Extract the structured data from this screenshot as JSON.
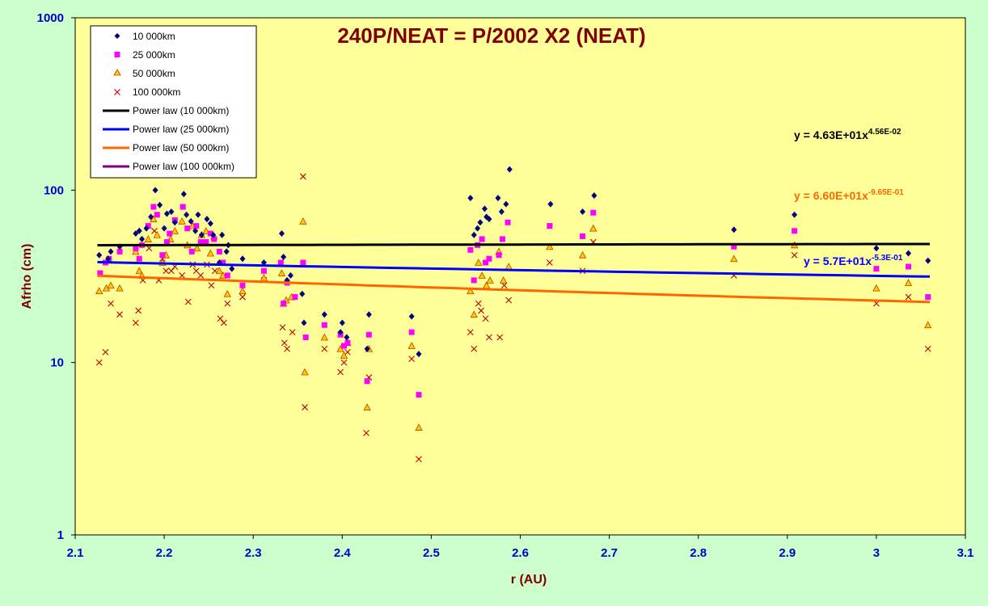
{
  "chart_data": {
    "type": "scatter",
    "title": "240P/NEAT = P/2002 X2 (NEAT)",
    "xlabel": "r (AU)",
    "ylabel": "Afrho (cm)",
    "xlim": [
      2.1,
      3.1
    ],
    "ylim": [
      1,
      1000
    ],
    "yscale": "log",
    "x_ticks": [
      "2.1",
      "2.2",
      "2.3",
      "2.4",
      "2.5",
      "2.6",
      "2.7",
      "2.8",
      "2.9",
      "3",
      "3.1"
    ],
    "y_ticks": [
      "1",
      "10",
      "100",
      "1000"
    ],
    "grid": false,
    "legend_position": "top-left",
    "colors": {
      "plot_bg": "#FFFF99",
      "outer_bg": "#CCFFCC",
      "title": "#800000",
      "axis_label": "#800000",
      "tick_label": "#0000CC",
      "s10k": "#000080",
      "s25k": "#FF00FF",
      "s50k_fill": "#FFCC00",
      "s50k_edge": "#C04000",
      "s100k": "#C00000",
      "fit10k": "#000000",
      "fit25k": "#0000FF",
      "fit50k": "#FF6600",
      "fit100k": "#800080"
    },
    "series": [
      {
        "name": "10 000km",
        "marker": "diamond",
        "x": [
          2.127,
          2.137,
          2.14,
          2.15,
          2.168,
          2.172,
          2.175,
          2.18,
          2.185,
          2.19,
          2.195,
          2.2,
          2.203,
          2.208,
          2.212,
          2.222,
          2.225,
          2.23,
          2.235,
          2.238,
          2.242,
          2.248,
          2.252,
          2.255,
          2.262,
          2.265,
          2.27,
          2.272,
          2.276,
          2.288,
          2.312,
          2.332,
          2.334,
          2.338,
          2.342,
          2.355,
          2.357,
          2.38,
          2.398,
          2.4,
          2.405,
          2.428,
          2.43,
          2.478,
          2.486,
          2.544,
          2.548,
          2.552,
          2.555,
          2.56,
          2.562,
          2.565,
          2.575,
          2.579,
          2.584,
          2.588,
          2.634,
          2.67,
          2.683,
          2.84,
          2.908,
          3.0,
          3.036,
          3.058
        ],
        "y": [
          42,
          40,
          44,
          47,
          56,
          58,
          52,
          60,
          70,
          100,
          82,
          60,
          73,
          75,
          65,
          95,
          72,
          66,
          58,
          72,
          55,
          68,
          64,
          55,
          38,
          55,
          44,
          48,
          35,
          40,
          38,
          56,
          41,
          30,
          32,
          25,
          17,
          19,
          15,
          17,
          14,
          12,
          19,
          18.5,
          11.2,
          90,
          55,
          60,
          65,
          78,
          70,
          68,
          90,
          75,
          83,
          132,
          83,
          75,
          93,
          59,
          72,
          46,
          43,
          39
        ]
      },
      {
        "name": "25 000km",
        "marker": "square",
        "x": [
          2.128,
          2.134,
          2.138,
          2.15,
          2.168,
          2.172,
          2.175,
          2.182,
          2.188,
          2.192,
          2.198,
          2.203,
          2.206,
          2.212,
          2.221,
          2.226,
          2.231,
          2.236,
          2.241,
          2.247,
          2.252,
          2.256,
          2.262,
          2.266,
          2.271,
          2.288,
          2.312,
          2.331,
          2.334,
          2.338,
          2.347,
          2.356,
          2.359,
          2.38,
          2.398,
          2.402,
          2.406,
          2.428,
          2.43,
          2.478,
          2.486,
          2.544,
          2.548,
          2.552,
          2.557,
          2.561,
          2.565,
          2.576,
          2.58,
          2.586,
          2.633,
          2.67,
          2.682,
          2.84,
          2.908,
          3.0,
          3.036,
          3.058
        ],
        "y": [
          33,
          38,
          40,
          44,
          46,
          40,
          48,
          62,
          80,
          72,
          42,
          50,
          56,
          67,
          80,
          60,
          44,
          62,
          50,
          50,
          56,
          52,
          44,
          38,
          32,
          28,
          34,
          38,
          22,
          29,
          24,
          38,
          14,
          16.5,
          14.5,
          12.5,
          13,
          7.8,
          14.5,
          15,
          6.5,
          45,
          30,
          48,
          52,
          38,
          40,
          42,
          52,
          65,
          62,
          54,
          74,
          47,
          58,
          35,
          36,
          24
        ]
      },
      {
        "name": "50 000km",
        "marker": "triangle",
        "x": [
          2.127,
          2.135,
          2.14,
          2.15,
          2.168,
          2.172,
          2.175,
          2.182,
          2.188,
          2.192,
          2.198,
          2.202,
          2.207,
          2.212,
          2.22,
          2.226,
          2.232,
          2.237,
          2.242,
          2.247,
          2.252,
          2.256,
          2.262,
          2.266,
          2.271,
          2.288,
          2.312,
          2.332,
          2.334,
          2.337,
          2.343,
          2.356,
          2.358,
          2.38,
          2.398,
          2.402,
          2.406,
          2.428,
          2.43,
          2.478,
          2.486,
          2.544,
          2.548,
          2.553,
          2.557,
          2.562,
          2.566,
          2.576,
          2.581,
          2.587,
          2.633,
          2.67,
          2.682,
          2.84,
          2.908,
          3.0,
          3.036,
          3.058
        ],
        "y": [
          26,
          27,
          28,
          27,
          44,
          34,
          32,
          52,
          68,
          55,
          38,
          42,
          52,
          58,
          66,
          48,
          62,
          46,
          55,
          58,
          43,
          54,
          34,
          32,
          25,
          26,
          31,
          33,
          22,
          23,
          24,
          66,
          8.8,
          14,
          12,
          11,
          13,
          5.5,
          12,
          12.5,
          4.2,
          26,
          19,
          38,
          32,
          28,
          30,
          44,
          30,
          36,
          47,
          42,
          60,
          40,
          48,
          27,
          29,
          16.5
        ]
      },
      {
        "name": "100 000km",
        "marker": "x",
        "x": [
          2.127,
          2.134,
          2.14,
          2.15,
          2.168,
          2.171,
          2.176,
          2.183,
          2.189,
          2.194,
          2.198,
          2.202,
          2.208,
          2.212,
          2.22,
          2.227,
          2.232,
          2.236,
          2.241,
          2.248,
          2.253,
          2.257,
          2.263,
          2.267,
          2.271,
          2.288,
          2.312,
          2.333,
          2.335,
          2.338,
          2.344,
          2.356,
          2.358,
          2.38,
          2.398,
          2.402,
          2.406,
          2.427,
          2.43,
          2.478,
          2.486,
          2.544,
          2.548,
          2.553,
          2.556,
          2.561,
          2.565,
          2.577,
          2.582,
          2.587,
          2.633,
          2.67,
          2.682,
          2.84,
          2.908,
          3.0,
          3.036,
          3.058
        ],
        "y": [
          10,
          11.5,
          22,
          19,
          17,
          20,
          30,
          46,
          58,
          30,
          40,
          34,
          34,
          36,
          32,
          22.5,
          37,
          34,
          32,
          37,
          28,
          34,
          18,
          17,
          22,
          24,
          30,
          16,
          13,
          12,
          15,
          120,
          5.5,
          12,
          8.8,
          10,
          11.5,
          3.9,
          8.2,
          10.5,
          2.75,
          15,
          12,
          22,
          20,
          18,
          14,
          14,
          28,
          23,
          38,
          34,
          50,
          32,
          42,
          22,
          24,
          12
        ]
      }
    ],
    "fits": [
      {
        "name": "Power law (10 000km)",
        "a": 46.3,
        "b": 0.0456,
        "equation_lead": "y = 4.63E+01x",
        "equation_exp": "4.56E-02"
      },
      {
        "name": "Power law (25 000km)",
        "a": 57,
        "b": -0.53,
        "equation_lead": "y = 5.7E+01x",
        "equation_exp": "-5.3E-01"
      },
      {
        "name": "Power law (50 000km)",
        "a": 66,
        "b": -0.965,
        "equation_lead": "y = 6.60E+01x",
        "equation_exp": "-9.65E-01"
      },
      {
        "name": "Power law (100 000km)"
      }
    ]
  }
}
